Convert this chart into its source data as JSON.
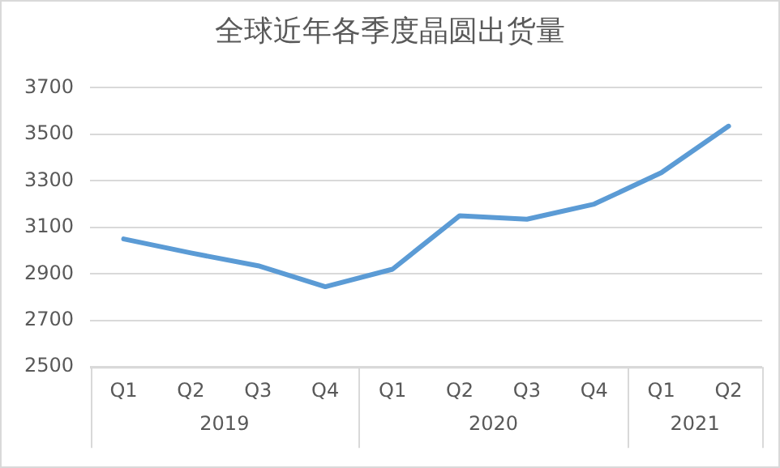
{
  "chart_data": {
    "type": "line",
    "title": "全球近年各季度晶圆出货量",
    "categories": [
      "Q1",
      "Q2",
      "Q3",
      "Q4",
      "Q1",
      "Q2",
      "Q3",
      "Q4",
      "Q1",
      "Q2"
    ],
    "series": [
      {
        "color": "#5b9bd5",
        "values": [
          3050,
          2990,
          2935,
          2845,
          2920,
          3150,
          3135,
          3200,
          3335,
          3535
        ]
      }
    ],
    "annotations": [
      "2019",
      "2020",
      "2021"
    ],
    "ylim": [
      2500,
      3700
    ],
    "yticks": [
      2500,
      2700,
      2900,
      3100,
      3300,
      3500,
      3700
    ],
    "grid": "y",
    "legend": false,
    "marker": "none",
    "line_style": "solid"
  }
}
